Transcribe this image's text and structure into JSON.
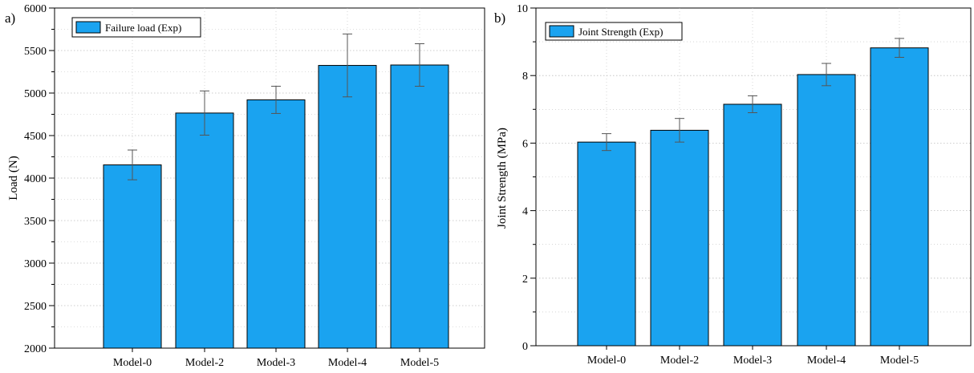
{
  "colors": {
    "bar_fill": "#1aa3f0",
    "bar_stroke": "#000000",
    "error_bar": "#555555",
    "grid": "#bdbdbd"
  },
  "chart_data": [
    {
      "type": "bar",
      "panel_label": "a)",
      "title": "",
      "xlabel": "",
      "ylabel": "Load (N)",
      "categories": [
        "Model-0",
        "Model-2",
        "Model-3",
        "Model-4",
        "Model-5"
      ],
      "series": [
        {
          "name": "Failure load (Exp)",
          "values": [
            4155,
            4765,
            4920,
            5325,
            5330
          ],
          "errors": [
            175,
            260,
            160,
            370,
            250
          ]
        }
      ],
      "ylim": [
        2000,
        6000
      ],
      "yticks": [
        2000,
        2500,
        3000,
        3500,
        4000,
        4500,
        5000,
        5500,
        6000
      ],
      "grid": true,
      "legend_position": "top-left"
    },
    {
      "type": "bar",
      "panel_label": "b)",
      "title": "",
      "xlabel": "",
      "ylabel": "Joint Strength (MPa)",
      "categories": [
        "Model-0",
        "Model-2",
        "Model-3",
        "Model-4",
        "Model-5"
      ],
      "series": [
        {
          "name": "Joint Strength (Exp)",
          "values": [
            6.03,
            6.38,
            7.15,
            8.03,
            8.82
          ],
          "errors": [
            0.25,
            0.35,
            0.25,
            0.33,
            0.28
          ]
        }
      ],
      "ylim": [
        0,
        10
      ],
      "yticks": [
        0,
        2,
        4,
        6,
        8,
        10
      ],
      "grid": true,
      "legend_position": "top-left"
    }
  ]
}
